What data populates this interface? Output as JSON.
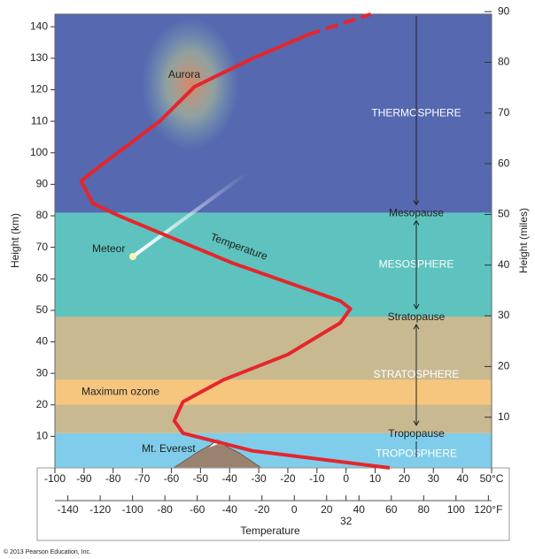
{
  "chart_data": {
    "type": "line",
    "xlabel": "Temperature",
    "ylabel": "Height (km)",
    "y2label": "Height (miles)",
    "xlim": [
      -100,
      50
    ],
    "xticks": [
      -100,
      -90,
      -80,
      -70,
      -60,
      -50,
      -40,
      -30,
      -20,
      -10,
      0,
      10,
      20,
      30,
      40,
      {
        "value": 50,
        "label": "50°C"
      }
    ],
    "x2lim": [
      -148,
      122
    ],
    "x2ticks": [
      -140,
      -120,
      -100,
      -80,
      -60,
      -40,
      -20,
      0,
      20,
      40,
      32,
      60,
      80,
      100,
      {
        "value": 120,
        "label": "120°F"
      }
    ],
    "ylim": [
      0,
      144
    ],
    "yticks": [
      10,
      20,
      30,
      40,
      50,
      60,
      70,
      80,
      90,
      100,
      110,
      120,
      130,
      140
    ],
    "y2lim": [
      0,
      89.5
    ],
    "y2ticks": [
      10,
      20,
      30,
      40,
      50,
      60,
      70,
      80,
      90
    ],
    "bands": [
      {
        "label": "TROPOSPHERE",
        "from": 0,
        "to": 11,
        "color": "#7fcdea",
        "top_label": "Tropopause"
      },
      {
        "label": "STRATOSPHERE",
        "from": 11,
        "to": 48,
        "color": "#c8b990",
        "top_label": "Stratopause"
      },
      {
        "label": "MESOSPHERE",
        "from": 48,
        "to": 81,
        "color": "#5ec3bf",
        "top_label": "Mesopause"
      },
      {
        "label": "THERMOSPHERE",
        "from": 81,
        "to": 144,
        "color": "#5668b0"
      }
    ],
    "ozone": {
      "label": "Maximum ozone",
      "from": 20,
      "to": 28,
      "color": "#f6c67e"
    },
    "series": [
      {
        "color": "#e5262c",
        "style": "solid",
        "x": [
          15,
          -32,
          -56,
          -59,
          -56,
          -42,
          -20,
          -2,
          1.5,
          -2,
          -39,
          -78,
          -87,
          -91,
          -87,
          -64,
          -52,
          -32,
          -13
        ],
        "values": [
          0,
          5.4,
          11,
          15,
          21,
          28,
          36,
          46,
          50.5,
          53,
          65,
          80,
          84,
          91,
          94,
          110,
          121,
          130,
          137.5
        ]
      },
      {
        "color": "#e5262c",
        "style": "dashed",
        "x": [
          -13,
          8.5
        ],
        "values": [
          137.5,
          144
        ]
      }
    ],
    "annotations": {
      "aurora": "Aurora",
      "meteor": "Meteor",
      "temperature": "Temperature",
      "everest": "Mt. Everest"
    },
    "copyright": "© 2013 Pearson Education, Inc."
  }
}
